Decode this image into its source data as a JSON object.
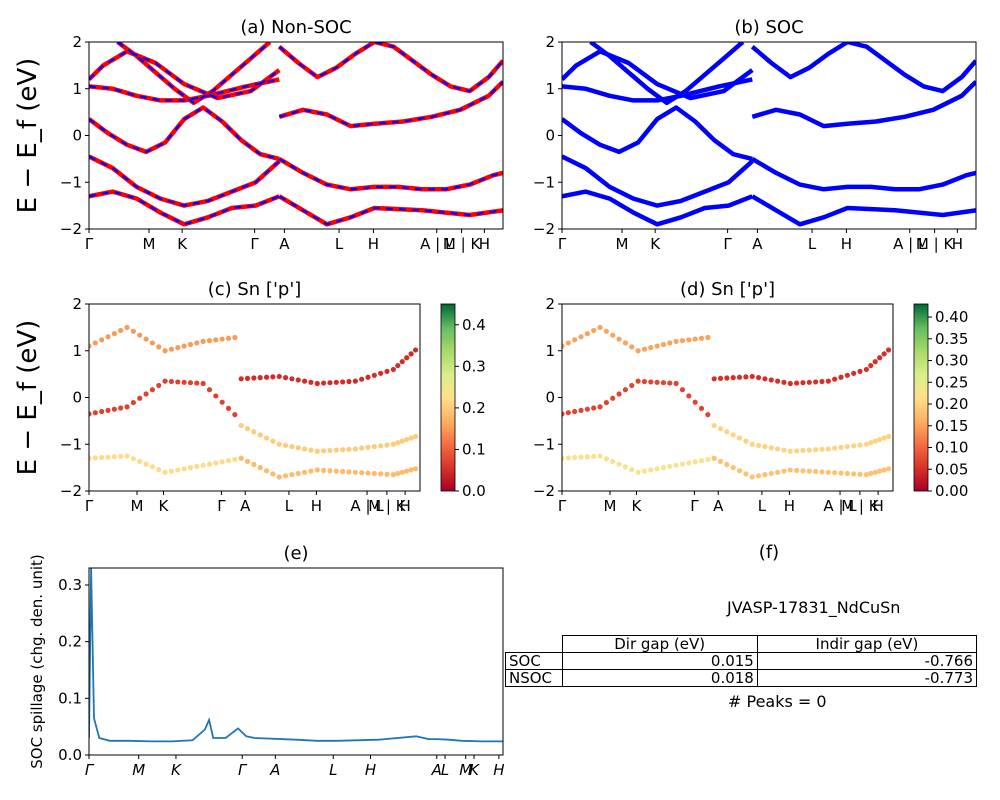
{
  "figure": {
    "material_id": "JVASP-17831_NdCuSn",
    "peaks_note": "# Peaks = 0",
    "panel_f_title": "(f)",
    "table": {
      "headers": [
        "",
        "Dir gap (eV)",
        "Indir gap (eV)"
      ],
      "rows": [
        {
          "label": "SOC",
          "dir": "0.015",
          "indir": "-0.766"
        },
        {
          "label": "NSOC",
          "dir": "0.018",
          "indir": "-0.773"
        }
      ]
    }
  },
  "chart_data": [
    {
      "id": "a",
      "type": "line",
      "title": "(a) Non-SOC",
      "ylabel": "E − E_f (eV)",
      "ylim": [
        -2,
        2
      ],
      "yticks": [
        "2",
        "1",
        "0",
        "−1",
        "−2"
      ],
      "kpath_labels": [
        "Γ",
        "M",
        "K",
        "Γ",
        "A",
        "L",
        "H",
        "A | L",
        "M | K",
        "H"
      ],
      "series": [
        {
          "color": "#ff0000",
          "style": "solid thick"
        },
        {
          "color": "#0000ff",
          "style": "dashed overlay"
        }
      ],
      "bands": [
        {
          "x": [
            0,
            0.03,
            0.08,
            0.14,
            0.2,
            0.27,
            0.34,
            0.4
          ],
          "y": [
            1.2,
            1.5,
            1.8,
            1.55,
            1.1,
            0.8,
            0.95,
            1.4
          ]
        },
        {
          "x": [
            0,
            0.05,
            0.1,
            0.15,
            0.2,
            0.25,
            0.33,
            0.4
          ],
          "y": [
            1.05,
            1.0,
            0.85,
            0.75,
            0.75,
            0.85,
            1.05,
            1.2
          ]
        },
        {
          "x": [
            0.4,
            0.45,
            0.5,
            0.55,
            0.6,
            0.66,
            0.72,
            0.78,
            0.84,
            0.87
          ],
          "y": [
            0.4,
            0.55,
            0.45,
            0.2,
            0.25,
            0.3,
            0.4,
            0.55,
            0.85,
            1.15
          ]
        },
        {
          "x": [
            0,
            0.04,
            0.08,
            0.12,
            0.16,
            0.2,
            0.24,
            0.28,
            0.32,
            0.36,
            0.4
          ],
          "y": [
            0.35,
            0.05,
            -0.2,
            -0.35,
            -0.15,
            0.35,
            0.6,
            0.3,
            -0.1,
            -0.4,
            -0.5
          ]
        },
        {
          "x": [
            0.4,
            0.45,
            0.5,
            0.55,
            0.6,
            0.65,
            0.7,
            0.75,
            0.8,
            0.85,
            0.87
          ],
          "y": [
            -0.5,
            -0.8,
            -1.05,
            -1.15,
            -1.1,
            -1.1,
            -1.15,
            -1.15,
            -1.05,
            -0.85,
            -0.8
          ]
        },
        {
          "x": [
            0,
            0.05,
            0.1,
            0.15,
            0.2,
            0.25,
            0.3,
            0.35,
            0.4
          ],
          "y": [
            -0.45,
            -0.7,
            -1.1,
            -1.35,
            -1.5,
            -1.4,
            -1.2,
            -1.0,
            -0.55
          ]
        },
        {
          "x": [
            0,
            0.05,
            0.1,
            0.15,
            0.2,
            0.25,
            0.3,
            0.35,
            0.4
          ],
          "y": [
            -1.3,
            -1.2,
            -1.35,
            -1.65,
            -1.9,
            -1.75,
            -1.55,
            -1.5,
            -1.3
          ]
        },
        {
          "x": [
            0.4,
            0.45,
            0.5,
            0.55,
            0.6,
            0.7,
            0.8,
            0.87
          ],
          "y": [
            -1.3,
            -1.6,
            -1.9,
            -1.75,
            -1.55,
            -1.6,
            -1.7,
            -1.6
          ]
        },
        {
          "x": [
            0.06,
            0.1,
            0.14,
            0.18,
            0.22,
            0.26,
            0.3,
            0.34,
            0.38
          ],
          "y": [
            2.0,
            1.7,
            1.35,
            1.0,
            0.7,
            0.95,
            1.3,
            1.65,
            2.0
          ]
        },
        {
          "x": [
            0.4,
            0.44,
            0.48,
            0.52,
            0.56,
            0.6,
            0.64,
            0.68,
            0.72,
            0.76,
            0.8,
            0.84,
            0.87
          ],
          "y": [
            1.9,
            1.55,
            1.25,
            1.45,
            1.75,
            2.0,
            1.9,
            1.6,
            1.3,
            1.05,
            0.95,
            1.25,
            1.6
          ]
        }
      ]
    },
    {
      "id": "b",
      "type": "line",
      "title": "(b) SOC",
      "ylim": [
        -2,
        2
      ],
      "yticks": [
        "2",
        "1",
        "0",
        "−1",
        "−2"
      ],
      "kpath_labels": [
        "Γ",
        "M",
        "K",
        "Γ",
        "A",
        "L",
        "H",
        "A | L",
        "M | K",
        "H"
      ],
      "series": [
        {
          "color": "#0000ff",
          "style": "solid thick"
        }
      ],
      "bands": [
        {
          "x": [
            0,
            0.03,
            0.08,
            0.14,
            0.2,
            0.27,
            0.34,
            0.4
          ],
          "y": [
            1.2,
            1.5,
            1.8,
            1.55,
            1.1,
            0.8,
            0.95,
            1.4
          ]
        },
        {
          "x": [
            0,
            0.05,
            0.1,
            0.15,
            0.2,
            0.25,
            0.33,
            0.4
          ],
          "y": [
            1.05,
            1.0,
            0.85,
            0.75,
            0.75,
            0.85,
            1.05,
            1.2
          ]
        },
        {
          "x": [
            0.4,
            0.45,
            0.5,
            0.55,
            0.6,
            0.66,
            0.72,
            0.78,
            0.84,
            0.87
          ],
          "y": [
            0.4,
            0.55,
            0.45,
            0.2,
            0.25,
            0.3,
            0.4,
            0.55,
            0.85,
            1.15
          ]
        },
        {
          "x": [
            0,
            0.04,
            0.08,
            0.12,
            0.16,
            0.2,
            0.24,
            0.28,
            0.32,
            0.36,
            0.4
          ],
          "y": [
            0.35,
            0.05,
            -0.2,
            -0.35,
            -0.15,
            0.35,
            0.6,
            0.3,
            -0.1,
            -0.4,
            -0.5
          ]
        },
        {
          "x": [
            0.4,
            0.45,
            0.5,
            0.55,
            0.6,
            0.65,
            0.7,
            0.75,
            0.8,
            0.85,
            0.87
          ],
          "y": [
            -0.5,
            -0.8,
            -1.05,
            -1.15,
            -1.1,
            -1.1,
            -1.15,
            -1.15,
            -1.05,
            -0.85,
            -0.8
          ]
        },
        {
          "x": [
            0,
            0.05,
            0.1,
            0.15,
            0.2,
            0.25,
            0.3,
            0.35,
            0.4
          ],
          "y": [
            -0.45,
            -0.7,
            -1.1,
            -1.35,
            -1.5,
            -1.4,
            -1.2,
            -1.0,
            -0.55
          ]
        },
        {
          "x": [
            0,
            0.05,
            0.1,
            0.15,
            0.2,
            0.25,
            0.3,
            0.35,
            0.4
          ],
          "y": [
            -1.3,
            -1.2,
            -1.35,
            -1.65,
            -1.9,
            -1.75,
            -1.55,
            -1.5,
            -1.3
          ]
        },
        {
          "x": [
            0.4,
            0.45,
            0.5,
            0.55,
            0.6,
            0.7,
            0.8,
            0.87
          ],
          "y": [
            -1.3,
            -1.6,
            -1.9,
            -1.75,
            -1.55,
            -1.6,
            -1.7,
            -1.6
          ]
        },
        {
          "x": [
            0.06,
            0.1,
            0.14,
            0.18,
            0.22,
            0.26,
            0.3,
            0.34,
            0.38
          ],
          "y": [
            2.0,
            1.7,
            1.35,
            1.0,
            0.7,
            0.95,
            1.3,
            1.65,
            2.0
          ]
        },
        {
          "x": [
            0.4,
            0.44,
            0.48,
            0.52,
            0.56,
            0.6,
            0.64,
            0.68,
            0.72,
            0.76,
            0.8,
            0.84,
            0.87
          ],
          "y": [
            1.9,
            1.55,
            1.25,
            1.45,
            1.75,
            2.0,
            1.9,
            1.6,
            1.3,
            1.05,
            0.95,
            1.25,
            1.6
          ]
        }
      ]
    },
    {
      "id": "c",
      "type": "scatter",
      "title": "(c)  Sn ['p']",
      "ylabel": "E − E_f (eV)",
      "ylim": [
        -2,
        2
      ],
      "yticks": [
        "2",
        "1",
        "0",
        "−1",
        "−2"
      ],
      "kpath_labels": [
        "Γ",
        "M",
        "K",
        "Γ",
        "A",
        "L",
        "H",
        "A | L",
        "M | K",
        "H"
      ],
      "colorbar": {
        "ticks": [
          "0.0",
          "0.1",
          "0.2",
          "0.3",
          "0.4"
        ],
        "range": [
          0,
          0.45
        ],
        "colormap": "RdYlGn"
      },
      "bands": [
        {
          "x": [
            0,
            0.1,
            0.2,
            0.3,
            0.4
          ],
          "y": [
            1.1,
            1.5,
            1.0,
            1.2,
            1.3
          ],
          "w": 0.15
        },
        {
          "x": [
            0.4,
            0.5,
            0.6,
            0.7,
            0.8,
            0.87
          ],
          "y": [
            0.4,
            0.45,
            0.3,
            0.35,
            0.6,
            1.1
          ],
          "w": 0.05
        },
        {
          "x": [
            0,
            0.1,
            0.2,
            0.3,
            0.4
          ],
          "y": [
            -0.35,
            -0.2,
            0.35,
            0.3,
            -0.5
          ],
          "w": 0.07
        },
        {
          "x": [
            0.4,
            0.5,
            0.6,
            0.7,
            0.8,
            0.87
          ],
          "y": [
            -0.6,
            -1.0,
            -1.15,
            -1.1,
            -1.0,
            -0.8
          ],
          "w": 0.2
        },
        {
          "x": [
            0,
            0.1,
            0.2,
            0.3,
            0.4
          ],
          "y": [
            -1.3,
            -1.25,
            -1.6,
            -1.45,
            -1.3
          ],
          "w": 0.22
        },
        {
          "x": [
            0.4,
            0.5,
            0.6,
            0.7,
            0.8,
            0.87
          ],
          "y": [
            -1.3,
            -1.7,
            -1.55,
            -1.6,
            -1.65,
            -1.5
          ],
          "w": 0.18
        }
      ]
    },
    {
      "id": "d",
      "type": "scatter",
      "title": "(d) Sn ['p']",
      "ylim": [
        -2,
        2
      ],
      "yticks": [
        "2",
        "1",
        "0",
        "−1",
        "−2"
      ],
      "kpath_labels": [
        "Γ",
        "M",
        "K",
        "Γ",
        "A",
        "L",
        "H",
        "A | L",
        "M | K",
        "H"
      ],
      "colorbar": {
        "ticks": [
          "0.40",
          "0.35",
          "0.30",
          "0.25",
          "0.20",
          "0.15",
          "0.10",
          "0.05",
          "0.00"
        ],
        "range": [
          0,
          0.43
        ],
        "colormap": "RdYlGn"
      },
      "bands": [
        {
          "x": [
            0,
            0.1,
            0.2,
            0.3,
            0.4
          ],
          "y": [
            1.1,
            1.5,
            1.0,
            1.2,
            1.3
          ],
          "w": 0.15
        },
        {
          "x": [
            0.4,
            0.5,
            0.6,
            0.7,
            0.8,
            0.87
          ],
          "y": [
            0.4,
            0.45,
            0.3,
            0.35,
            0.6,
            1.1
          ],
          "w": 0.05
        },
        {
          "x": [
            0,
            0.1,
            0.2,
            0.3,
            0.4
          ],
          "y": [
            -0.35,
            -0.2,
            0.35,
            0.3,
            -0.5
          ],
          "w": 0.07
        },
        {
          "x": [
            0.4,
            0.5,
            0.6,
            0.7,
            0.8,
            0.87
          ],
          "y": [
            -0.6,
            -1.0,
            -1.15,
            -1.1,
            -1.0,
            -0.8
          ],
          "w": 0.2
        },
        {
          "x": [
            0,
            0.1,
            0.2,
            0.3,
            0.4
          ],
          "y": [
            -1.3,
            -1.25,
            -1.6,
            -1.45,
            -1.3
          ],
          "w": 0.22
        },
        {
          "x": [
            0.4,
            0.5,
            0.6,
            0.7,
            0.8,
            0.87
          ],
          "y": [
            -1.3,
            -1.7,
            -1.55,
            -1.6,
            -1.65,
            -1.5
          ],
          "w": 0.18
        }
      ]
    },
    {
      "id": "e",
      "type": "line",
      "title": "(e)",
      "ylabel": "SOC spillage (chg. den. unit)",
      "ylim": [
        0,
        0.33
      ],
      "yticks": [
        "0.0",
        "0.1",
        "0.2",
        "0.3"
      ],
      "kpath_labels": [
        "Γ",
        "M",
        "K",
        "Γ",
        "A",
        "L",
        "H",
        "A",
        "L",
        "M",
        "K",
        "H"
      ],
      "series": [
        {
          "color": "#1f77b4",
          "x": [
            0,
            0.005,
            0.012,
            0.025,
            0.05,
            0.1,
            0.15,
            0.2,
            0.25,
            0.28,
            0.29,
            0.3,
            0.33,
            0.36,
            0.38,
            0.4,
            0.5,
            0.55,
            0.6,
            0.7,
            0.79,
            0.82,
            0.84,
            0.87,
            0.9,
            0.95,
            1.0
          ],
          "y": [
            0.03,
            0.33,
            0.065,
            0.03,
            0.025,
            0.025,
            0.024,
            0.024,
            0.026,
            0.045,
            0.062,
            0.03,
            0.03,
            0.047,
            0.033,
            0.03,
            0.027,
            0.025,
            0.025,
            0.027,
            0.033,
            0.028,
            0.028,
            0.027,
            0.025,
            0.024,
            0.024
          ]
        }
      ]
    }
  ]
}
